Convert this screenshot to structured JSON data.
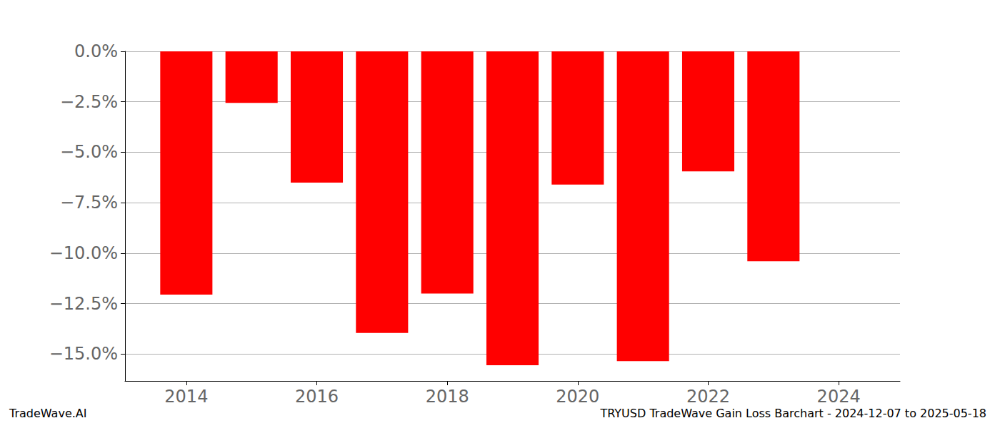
{
  "chart_data": {
    "type": "bar",
    "title": "TRYUSD TradeWave Gain Loss Barchart - 2024-12-07 to 2025-05-18",
    "annotations": [
      "TradeWave.AI"
    ],
    "x": [
      2014,
      2015,
      2016,
      2017,
      2018,
      2019,
      2020,
      2021,
      2022,
      2023
    ],
    "values": [
      -12.05,
      -2.55,
      -6.5,
      -13.95,
      -12.0,
      -15.55,
      -6.6,
      -15.35,
      -5.95,
      -10.4
    ],
    "color": "#ff0000",
    "xlim": [
      2013.06,
      2024.94
    ],
    "xticks": [
      2014,
      2016,
      2018,
      2020,
      2022,
      2024
    ],
    "ylim": [
      -16.33,
      0
    ],
    "yticks": [
      {
        "value": -15,
        "label": "−15.0%"
      },
      {
        "value": -12.5,
        "label": "−12.5%"
      },
      {
        "value": -10,
        "label": "−10.0%"
      },
      {
        "value": -7.5,
        "label": "−7.5%"
      },
      {
        "value": -5,
        "label": "−5.0%"
      },
      {
        "value": -2.5,
        "label": "−2.5%"
      },
      {
        "value": 0,
        "label": "0.0%"
      }
    ],
    "grid": true
  }
}
